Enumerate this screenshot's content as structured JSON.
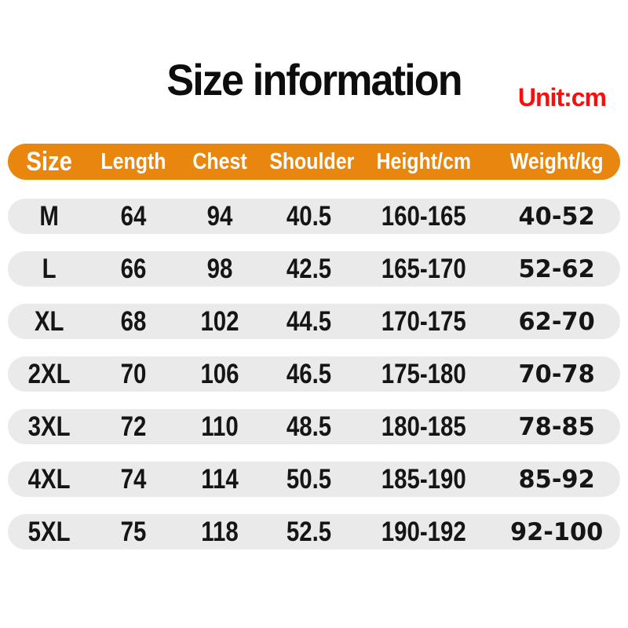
{
  "header": {
    "title": "Size information",
    "unit": "Unit:cm"
  },
  "colors": {
    "accent_orange": "#E8860D",
    "row_gray": "#EAEAEA",
    "unit_red": "#F90D0D",
    "header_text": "#FFFFFF",
    "title_black": "#0D0D0D",
    "body_text": "#151515"
  },
  "chart_data": {
    "type": "table",
    "title": "Size information",
    "annotation": "Unit:cm",
    "columns": [
      "Size",
      "Length",
      "Chest",
      "Shoulder",
      "Height/cm",
      "Weight/kg"
    ],
    "rows": [
      [
        "M",
        "64",
        "94",
        "40.5",
        "160-165",
        "40-52"
      ],
      [
        "L",
        "66",
        "98",
        "42.5",
        "165-170",
        "52-62"
      ],
      [
        "XL",
        "68",
        "102",
        "44.5",
        "170-175",
        "62-70"
      ],
      [
        "2XL",
        "70",
        "106",
        "46.5",
        "175-180",
        "70-78"
      ],
      [
        "3XL",
        "72",
        "110",
        "48.5",
        "180-185",
        "78-85"
      ],
      [
        "4XL",
        "74",
        "114",
        "50.5",
        "185-190",
        "85-92"
      ],
      [
        "5XL",
        "75",
        "118",
        "52.5",
        "190-192",
        "92-100"
      ]
    ]
  }
}
